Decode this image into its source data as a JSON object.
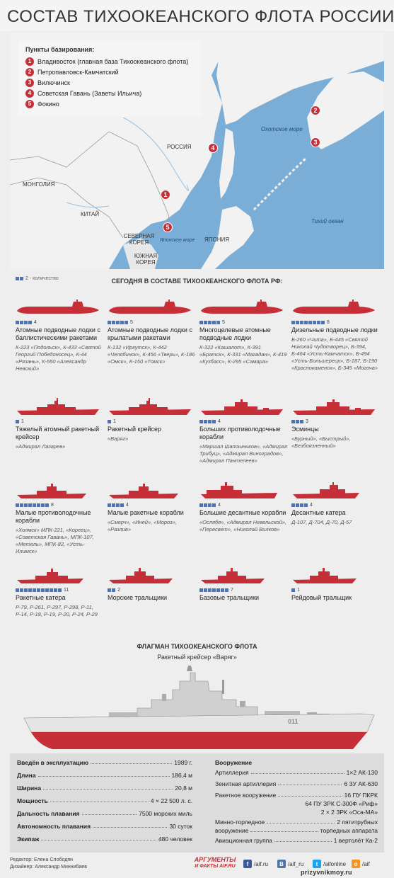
{
  "title": "СОСТАВ ТИХООКЕАНСКОГО ФЛОТА РОССИИ",
  "map": {
    "legend_title": "Пункты базирования:",
    "bases": [
      {
        "n": "1",
        "name": "Владивосток (главная база Тихоокеанского флота)"
      },
      {
        "n": "2",
        "name": "Петропавловск-Камчатский"
      },
      {
        "n": "3",
        "name": "Вилючинск"
      },
      {
        "n": "4",
        "name": "Советская Гавань (Заветы Ильича)"
      },
      {
        "n": "5",
        "name": "Фокино"
      }
    ],
    "labels": {
      "russia": "РОССИЯ",
      "mongolia": "МОНГОЛИЯ",
      "china": "КИТАЙ",
      "north_korea": "СЕВЕРНАЯ КОРЕЯ",
      "south_korea": "ЮЖНАЯ КОРЕЯ",
      "japan": "ЯПОНИЯ",
      "okhotsk": "Охотское море",
      "japan_sea": "Японское море",
      "pacific": "Тихий океан"
    },
    "colors": {
      "sea": "#7aaed6",
      "land": "#f2f2f2",
      "marker": "#c62f37"
    }
  },
  "qty_legend": "2 - количество",
  "today_title": "СЕГОДНЯ В СОСТАВЕ ТИХООКЕАНСКОГО ФЛОТА РФ:",
  "ships": [
    {
      "name": "Атомные подводные лодки с баллистическими ракетами",
      "count": 4,
      "names": "К-223 «Подольск», К-433 «Святой Георгий Победоносец», К-44 «Рязань», К-550 «Александр Невский»",
      "icon": "submarine-icon"
    },
    {
      "name": "Атомные подводные лодки с крылатыми ракетами",
      "count": 5,
      "names": "К-132 «Иркутск», К-442 «Челябинск», К-456 «Тверь», К-186 «Омск», К-150 «Томск»",
      "icon": "submarine-icon"
    },
    {
      "name": "Многоцелевые атомные подводные лодки",
      "count": 5,
      "names": "К-322 «Кашалот», К-391 «Братск», К-331 «Магадан», К-419 «Кузбасс», К-295 «Самара»",
      "icon": "submarine-icon"
    },
    {
      "name": "Дизельные подводные лодки",
      "count": 8,
      "names": "Б-260 «Чита», Б-445 «Святой Николай Чудотворец», Б-394, Б-464 «Усть-Камчатск», Б-494 «Усть-Большерецк», Б-187, Б-190 «Краснокаменск», Б-345 «Могоча»",
      "icon": "submarine-icon"
    },
    {
      "name": "Тяжелый атомный ракетный крейсер",
      "count": 1,
      "names": "«Адмирал Лазарев»",
      "icon": "cruiser-icon"
    },
    {
      "name": "Ракетный крейсер",
      "count": 1,
      "names": "«Варяг»",
      "icon": "cruiser-icon"
    },
    {
      "name": "Больших противолодочные корабли",
      "count": 4,
      "names": "«Маршал Шапошников», «Адмирал Трибуц», «Адмирал Виноградов», «Адмирал Пантелеев»",
      "icon": "destroyer-icon"
    },
    {
      "name": "Эсминцы",
      "count": 3,
      "names": "«Бурный», «Быстрый», «Безбоязненный»",
      "icon": "destroyer-icon"
    },
    {
      "name": "Малые противолодочные корабли",
      "count": 8,
      "names": "«Холмск» МПК-221, «Кореец», «Советская Гавань», МПК-107, «Метель», МПК-82, «Усть-Илимск»",
      "icon": "corvette-icon"
    },
    {
      "name": "Малые ракетные корабли",
      "count": 4,
      "names": "«Смерч», «Иней», «Мороз», «Разлив»",
      "icon": "corvette-icon"
    },
    {
      "name": "Большие десантные корабли",
      "count": 4,
      "names": "«Ослябя», «Адмирал Невельской», «Пересвет», «Николай Вилков»",
      "icon": "landing-ship-icon"
    },
    {
      "name": "Десантные катера",
      "count": 4,
      "names": "Д-107, Д-704, Д-70, Д-57",
      "icon": "landing-craft-icon"
    },
    {
      "name": "Ракетные катера",
      "count": 11,
      "names": "Р-79, Р-261, Р-297, Р-298, Р-11, Р-14, Р-18, Р-19, Р-20, Р-24, Р-29",
      "icon": "missile-boat-icon"
    },
    {
      "name": "Морские тральщики",
      "count": 2,
      "names": "",
      "icon": "minesweeper-icon"
    },
    {
      "name": "Базовые тральщики",
      "count": 7,
      "names": "",
      "icon": "minesweeper-icon"
    },
    {
      "name": "Рейдовый тральщик",
      "count": 1,
      "names": "",
      "icon": "minesweeper-icon"
    }
  ],
  "flagship": {
    "title": "ФЛАГМАН ТИХООКЕАНСКОГО ФЛОТА",
    "subtitle": "Ракетный крейсер «Варяг»",
    "hull_number": "011",
    "left": [
      {
        "k": "Введён в эксплуатацию",
        "v": "1989 г."
      },
      {
        "k": "Длина",
        "v": "186,4 м"
      },
      {
        "k": "Ширина",
        "v": "20,8 м"
      },
      {
        "k": "Мощность",
        "v": "4 × 22 500 л. с."
      },
      {
        "k": "Дальность плавания",
        "v": "7500 морских миль"
      },
      {
        "k": "Автономность плавания",
        "v": "30 суток"
      },
      {
        "k": "Экипаж",
        "v": "480 человек"
      }
    ],
    "armament_title": "Вооружение",
    "right": [
      {
        "k": "Артиллерия",
        "v": "1×2 АК-130"
      },
      {
        "k": "Зенитная артиллерия",
        "v": "6 ЗУ АК-630"
      },
      {
        "k": "Ракетное вооружение",
        "v": "16 ПУ ПКРК"
      },
      {
        "k": "",
        "v": "64 ПУ ЗРК С-300Ф «Риф»"
      },
      {
        "k": "",
        "v": "2 × 2 ЗРК «Оса-МА»"
      },
      {
        "k": "Минно-торпедное",
        "v": "2 пятитрубных"
      },
      {
        "k": "вооружение",
        "v": "торпедных аппарата"
      },
      {
        "k": "Авиационная группа",
        "v": "1 вертолёт Ка-2"
      }
    ]
  },
  "footer": {
    "editor": "Редактор: Елена Слободян",
    "designer": "Дизайнер: Александр Миннибаев",
    "brand_line1": "АРГУМЕНТЫ",
    "brand_line2": "И ФАКТЫ AIF.RU",
    "social": [
      {
        "icon": "facebook-icon",
        "glyph": "f",
        "label": "/aif.ru",
        "color": "#3b5998"
      },
      {
        "icon": "vk-icon",
        "glyph": "В",
        "label": "/aif_ru",
        "color": "#4c75a3"
      },
      {
        "icon": "twitter-icon",
        "glyph": "t",
        "label": "/aifonline",
        "color": "#1da1f2"
      },
      {
        "icon": "odnoklassniki-icon",
        "glyph": "о",
        "label": "/aif",
        "color": "#f7931e"
      }
    ],
    "watermark": "prizyvnikmoy.ru"
  }
}
